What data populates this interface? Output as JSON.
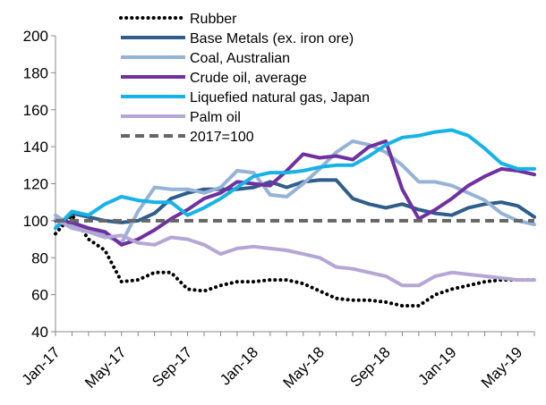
{
  "chart_data": {
    "type": "line",
    "x": [
      "Jan-17",
      "Feb-17",
      "Mar-17",
      "Apr-17",
      "May-17",
      "Jun-17",
      "Jul-17",
      "Aug-17",
      "Sep-17",
      "Oct-17",
      "Nov-17",
      "Dec-17",
      "Jan-18",
      "Feb-18",
      "Mar-18",
      "Apr-18",
      "May-18",
      "Jun-18",
      "Jul-18",
      "Aug-18",
      "Sep-18",
      "Oct-18",
      "Nov-18",
      "Dec-18",
      "Jan-19",
      "Feb-19",
      "Mar-19",
      "Apr-19",
      "May-19",
      "Jun-19"
    ],
    "x_tick_labels": [
      "Jan-17",
      "May-17",
      "Sep-17",
      "Jan-18",
      "May-18",
      "Sep-18",
      "Jan-19",
      "May-19"
    ],
    "ylim": [
      40,
      200
    ],
    "y_ticks": [
      40,
      60,
      80,
      100,
      120,
      140,
      160,
      180,
      200
    ],
    "legend_position": "top",
    "series": [
      {
        "name": "Rubber",
        "color": "#000000",
        "style": "dotted",
        "values": [
          93,
          103,
          90,
          84,
          67,
          68,
          72,
          72,
          63,
          62,
          65,
          67,
          67,
          68,
          68,
          66,
          62,
          58,
          57,
          57,
          56,
          54,
          54,
          60,
          63,
          65,
          67,
          68,
          68,
          68
        ]
      },
      {
        "name": "Base Metals (ex. iron ore)",
        "color": "#2F5D8C",
        "style": "solid",
        "values": [
          96,
          104,
          102,
          100,
          99,
          100,
          104,
          112,
          115,
          117,
          117,
          117,
          118,
          121,
          118,
          121,
          122,
          122,
          112,
          109,
          107,
          109,
          106,
          104,
          103,
          107,
          109,
          110,
          108,
          102
        ]
      },
      {
        "name": "Coal, Australian",
        "color": "#95B3D7",
        "style": "solid",
        "values": [
          103,
          97,
          96,
          92,
          88,
          105,
          118,
          117,
          117,
          115,
          118,
          127,
          126,
          114,
          113,
          120,
          128,
          137,
          143,
          141,
          137,
          130,
          121,
          121,
          119,
          115,
          111,
          104,
          100,
          98
        ]
      },
      {
        "name": "Crude oil, average",
        "color": "#7030A0",
        "style": "solid",
        "values": [
          100,
          99,
          96,
          94,
          87,
          90,
          95,
          101,
          106,
          112,
          115,
          121,
          120,
          119,
          127,
          136,
          134,
          135,
          133,
          140,
          143,
          117,
          101,
          106,
          112,
          119,
          124,
          128,
          127,
          125
        ]
      },
      {
        "name": "Liquefied natural gas, Japan",
        "color": "#17B3E8",
        "style": "solid",
        "values": [
          96,
          105,
          103,
          109,
          113,
          111,
          110,
          110,
          103,
          107,
          112,
          118,
          124,
          126,
          126,
          127,
          129,
          130,
          130,
          135,
          141,
          145,
          146,
          148,
          149,
          146,
          139,
          131,
          128,
          128
        ]
      },
      {
        "name": "Palm oil",
        "color": "#B4A7D6",
        "style": "solid",
        "values": [
          101,
          96,
          94,
          91,
          92,
          88,
          87,
          91,
          90,
          87,
          82,
          85,
          86,
          85,
          84,
          82,
          80,
          75,
          74,
          72,
          70,
          65,
          65,
          70,
          72,
          71,
          70,
          69,
          68,
          68
        ]
      },
      {
        "name": "2017=100",
        "color": "#666666",
        "style": "dashed",
        "values": [
          100,
          100,
          100,
          100,
          100,
          100,
          100,
          100,
          100,
          100,
          100,
          100,
          100,
          100,
          100,
          100,
          100,
          100,
          100,
          100,
          100,
          100,
          100,
          100,
          100,
          100,
          100,
          100,
          100,
          100
        ]
      }
    ]
  }
}
